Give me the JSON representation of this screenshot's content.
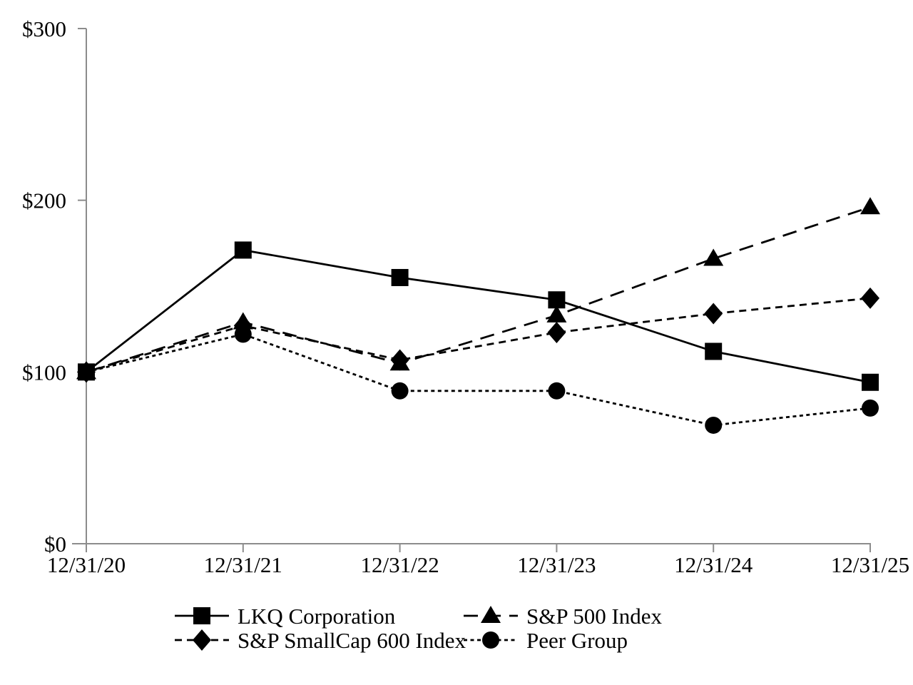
{
  "chart_data": {
    "type": "line",
    "title": "",
    "xlabel": "",
    "ylabel": "",
    "x": [
      "12/31/20",
      "12/31/21",
      "12/31/22",
      "12/31/23",
      "12/31/24",
      "12/31/25"
    ],
    "series": [
      {
        "name": "LKQ Corporation",
        "marker": "square",
        "line": "solid",
        "values": [
          100,
          171,
          155,
          142,
          112,
          94
        ]
      },
      {
        "name": "S&P 500 Index",
        "marker": "triangle",
        "line": "long-dash",
        "values": [
          100,
          129,
          105,
          133,
          166,
          196
        ]
      },
      {
        "name": "S&P SmallCap 600 Index",
        "marker": "diamond",
        "line": "dash",
        "values": [
          100,
          127,
          107,
          123,
          134,
          143
        ]
      },
      {
        "name": "Peer Group",
        "marker": "circle",
        "line": "fine-dash",
        "values": [
          100,
          122,
          89,
          89,
          69,
          79
        ]
      }
    ],
    "y_ticks": [
      0,
      100,
      200,
      300
    ],
    "y_tick_labels": [
      "$0",
      "$100",
      "$200",
      "$300"
    ],
    "ylim": [
      0,
      300
    ],
    "grid": false,
    "legend_position": "bottom",
    "colors": {
      "series": "#000000",
      "axis": "#8c8c8c",
      "background": "#ffffff",
      "text": "#000000"
    }
  }
}
